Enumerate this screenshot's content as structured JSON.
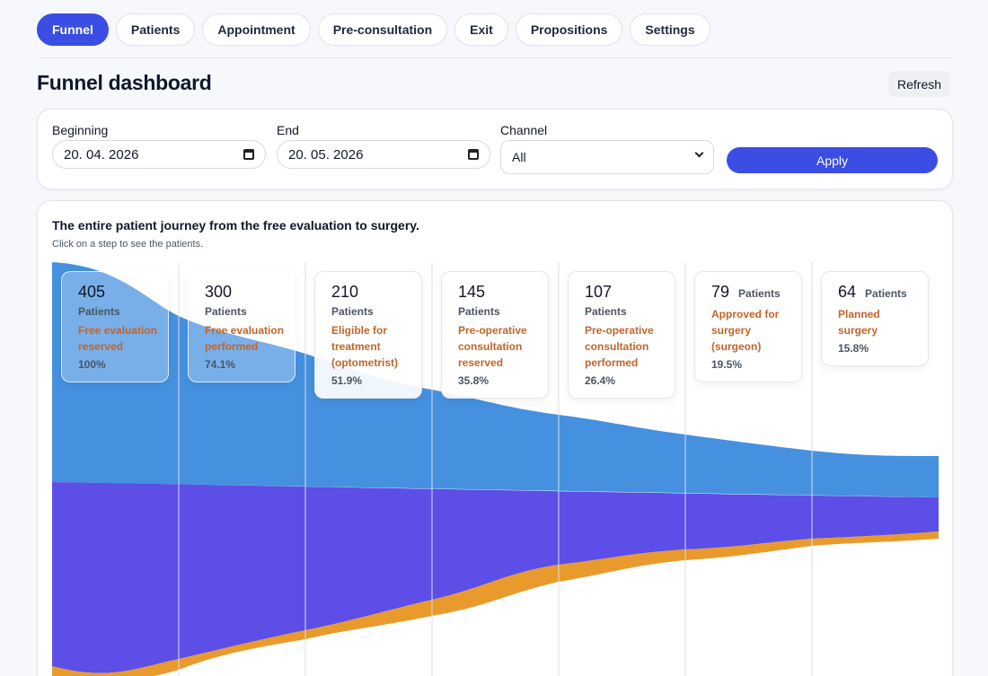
{
  "tabs": [
    {
      "label": "Funnel",
      "active": true
    },
    {
      "label": "Patients"
    },
    {
      "label": "Appointment"
    },
    {
      "label": "Pre-consultation"
    },
    {
      "label": "Exit"
    },
    {
      "label": "Propositions"
    },
    {
      "label": "Settings"
    }
  ],
  "header": {
    "title": "Funnel dashboard",
    "refresh_label": "Refresh"
  },
  "filters": {
    "beginning_label": "Beginning",
    "beginning_value": "20. 04. 2026",
    "end_label": "End",
    "end_value": "20. 05. 2026",
    "channel_label": "Channel",
    "channel_value": "All",
    "apply_label": "Apply"
  },
  "chart": {
    "title": "The entire patient journey from the free evaluation to surgery.",
    "subtitle": "Click on a step to see the patients.",
    "patients_word": "Patients"
  },
  "colors": {
    "accent": "#3b4de3",
    "blue_band": "#4591e0",
    "purple_band": "#5c4ee6",
    "orange_band": "#e89b2c",
    "step_label": "#c2652a"
  },
  "chart_data": {
    "type": "area",
    "categories": [
      "Free evaluation reserved",
      "Free evaluation performed",
      "Eligible for treatment (optometrist)",
      "Pre-operative consultation reserved",
      "Pre-operative consultation performed",
      "Approved for surgery (surgeon)",
      "Planned surgery"
    ],
    "values": [
      405,
      300,
      210,
      145,
      107,
      79,
      64
    ],
    "percentages": [
      "100%",
      "74.1%",
      "51.9%",
      "35.8%",
      "26.4%",
      "19.5%",
      "15.8%"
    ]
  }
}
